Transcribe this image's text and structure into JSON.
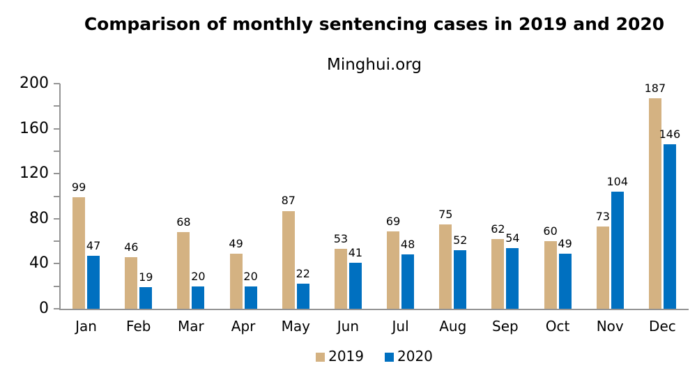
{
  "chart_data": {
    "type": "bar",
    "title": "Comparison of monthly sentencing cases in 2019 and 2020",
    "subtitle": "Minghui.org",
    "categories": [
      "Jan",
      "Feb",
      "Mar",
      "Apr",
      "May",
      "Jun",
      "Jul",
      "Aug",
      "Sep",
      "Oct",
      "Nov",
      "Dec"
    ],
    "series": [
      {
        "name": "2019",
        "color": "#D4B282",
        "values": [
          99,
          46,
          68,
          49,
          87,
          53,
          69,
          75,
          62,
          60,
          73,
          187
        ]
      },
      {
        "name": "2020",
        "color": "#0070C0",
        "values": [
          47,
          19,
          20,
          20,
          22,
          41,
          48,
          52,
          54,
          49,
          104,
          146
        ]
      }
    ],
    "ylim": [
      0,
      200
    ],
    "ytick_step": 20,
    "ylabel_step": 40,
    "yticklabels": [
      "0",
      "40",
      "80",
      "120",
      "160",
      "200"
    ],
    "grid": false,
    "legend_position": "bottom",
    "axis_color": "#949494",
    "text_color": "#000000",
    "background_color": "#FFFFFF"
  }
}
